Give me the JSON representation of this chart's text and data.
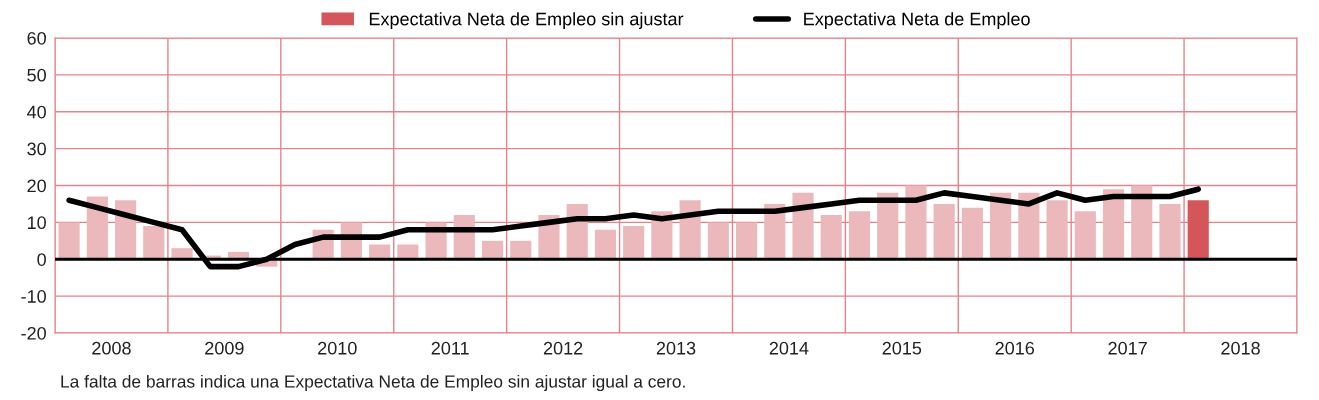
{
  "chart_data": {
    "type": "bar",
    "x": [
      2008.125,
      2008.375,
      2008.625,
      2008.875,
      2009.125,
      2009.375,
      2009.625,
      2009.875,
      2010.125,
      2010.375,
      2010.625,
      2010.875,
      2011.125,
      2011.375,
      2011.625,
      2011.875,
      2012.125,
      2012.375,
      2012.625,
      2012.875,
      2013.125,
      2013.375,
      2013.625,
      2013.875,
      2014.125,
      2014.375,
      2014.625,
      2014.875,
      2015.125,
      2015.375,
      2015.625,
      2015.875,
      2016.125,
      2016.375,
      2016.625,
      2016.875,
      2017.125,
      2017.375,
      2017.625,
      2017.875,
      2018.125
    ],
    "series": [
      {
        "name": "Expectativa Neta de Empleo sin ajustar",
        "color": "#d4555a",
        "values": [
          10,
          17,
          16,
          9,
          3,
          1,
          2,
          -2,
          0,
          8,
          10,
          4,
          4,
          10,
          12,
          5,
          5,
          12,
          15,
          8,
          9,
          13,
          16,
          10,
          10,
          15,
          18,
          12,
          13,
          18,
          20,
          15,
          14,
          18,
          18,
          16,
          13,
          19,
          20,
          15,
          16
        ],
        "colors": [
          "#ebb9bb",
          "#ebb9bb",
          "#ebb9bb",
          "#ebb9bb",
          "#ebb9bb",
          "#ebb9bb",
          "#ebb9bb",
          "#ebb9bb",
          "#ebb9bb",
          "#ebb9bb",
          "#ebb9bb",
          "#ebb9bb",
          "#ebb9bb",
          "#ebb9bb",
          "#ebb9bb",
          "#ebb9bb",
          "#ebb9bb",
          "#ebb9bb",
          "#ebb9bb",
          "#ebb9bb",
          "#ebb9bb",
          "#ebb9bb",
          "#ebb9bb",
          "#ebb9bb",
          "#ebb9bb",
          "#ebb9bb",
          "#ebb9bb",
          "#ebb9bb",
          "#ebb9bb",
          "#ebb9bb",
          "#ebb9bb",
          "#ebb9bb",
          "#ebb9bb",
          "#ebb9bb",
          "#ebb9bb",
          "#ebb9bb",
          "#ebb9bb",
          "#ebb9bb",
          "#ebb9bb",
          "#ebb9bb",
          "#d4555a"
        ]
      },
      {
        "type": "line",
        "name": "Expectativa Neta de Empleo",
        "color": "#000000",
        "values": [
          16,
          14,
          12,
          10,
          8,
          -2,
          -2,
          0,
          4,
          6,
          6,
          6,
          8,
          8,
          8,
          8,
          9,
          10,
          11,
          11,
          12,
          11,
          12,
          13,
          13,
          13,
          14,
          15,
          16,
          16,
          16,
          18,
          17,
          16,
          15,
          18,
          16,
          17,
          17,
          17,
          19
        ]
      }
    ],
    "xlim": [
      2008,
      2019
    ],
    "xticks": [
      {
        "value": 2008,
        "label": null
      },
      {
        "value": 2008.5,
        "label": "2008"
      },
      {
        "value": 2009,
        "label": null
      },
      {
        "value": 2009.5,
        "label": "2009"
      },
      {
        "value": 2010,
        "label": null
      },
      {
        "value": 2010.5,
        "label": "2010"
      },
      {
        "value": 2011,
        "label": null
      },
      {
        "value": 2011.5,
        "label": "2011"
      },
      {
        "value": 2012,
        "label": null
      },
      {
        "value": 2012.5,
        "label": "2012"
      },
      {
        "value": 2013,
        "label": null
      },
      {
        "value": 2013.5,
        "label": "2013"
      },
      {
        "value": 2014,
        "label": null
      },
      {
        "value": 2014.5,
        "label": "2014"
      },
      {
        "value": 2015,
        "label": null
      },
      {
        "value": 2015.5,
        "label": "2015"
      },
      {
        "value": 2016,
        "label": null
      },
      {
        "value": 2016.5,
        "label": "2016"
      },
      {
        "value": 2017,
        "label": null
      },
      {
        "value": 2017.5,
        "label": "2017"
      },
      {
        "value": 2018,
        "label": null
      },
      {
        "value": 2018.5,
        "label": "2018"
      },
      {
        "value": 2019,
        "label": null
      }
    ],
    "ylim": [
      -20,
      60
    ],
    "yticks": [
      -20,
      -10,
      0,
      10,
      20,
      30,
      40,
      50,
      60
    ],
    "grid": true,
    "legend": "top",
    "line_style": "solid",
    "marker": "none",
    "ref_lines": [
      {
        "axis": "y",
        "value": 0,
        "color": "#000000",
        "line_style": "solid"
      }
    ],
    "annotations": [
      "La falta de barras indica una Expectativa Neta de Empleo sin ajustar igual a cero."
    ]
  }
}
